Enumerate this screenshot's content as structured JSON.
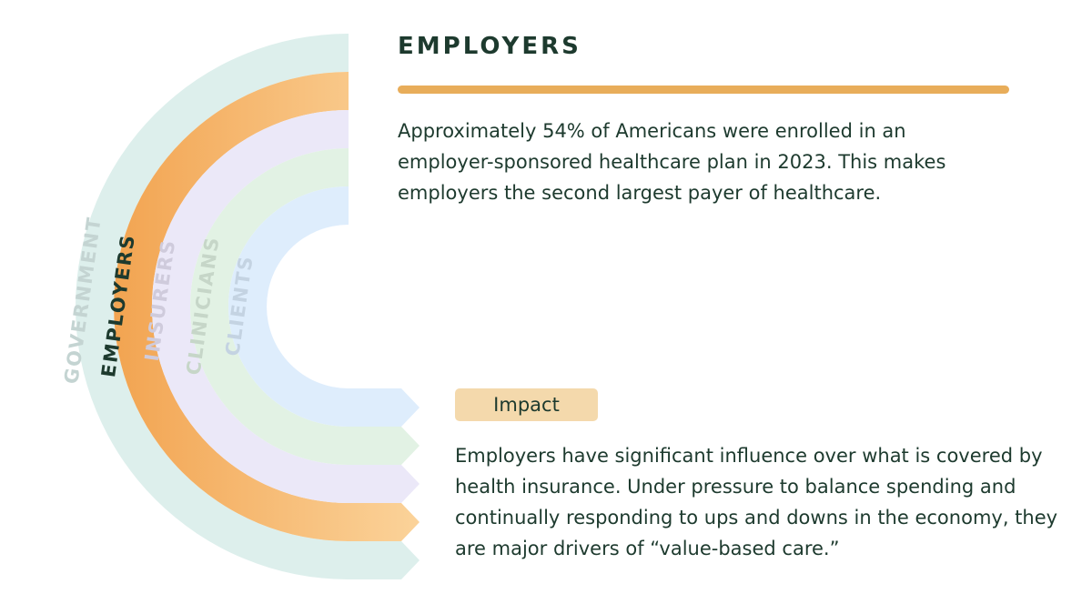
{
  "header": {
    "title": "EMPLOYERS"
  },
  "description": "Approximately 54% of Americans were enrolled in an employer-sponsored healthcare plan in 2023. This makes employers the second largest payer of healthcare.",
  "impact": {
    "label": "Impact",
    "text": "Employers have significant influence over what is covered by health insurance. Under pressure to balance spending and continually responding to ups and downs in the economy, they are major drivers of “value-based care.”"
  },
  "rings": [
    {
      "label": "GOVERNMENT"
    },
    {
      "label": "EMPLOYERS"
    },
    {
      "label": "INSURERS"
    },
    {
      "label": "CLINICIANS"
    },
    {
      "label": "CLIENTS"
    }
  ]
}
